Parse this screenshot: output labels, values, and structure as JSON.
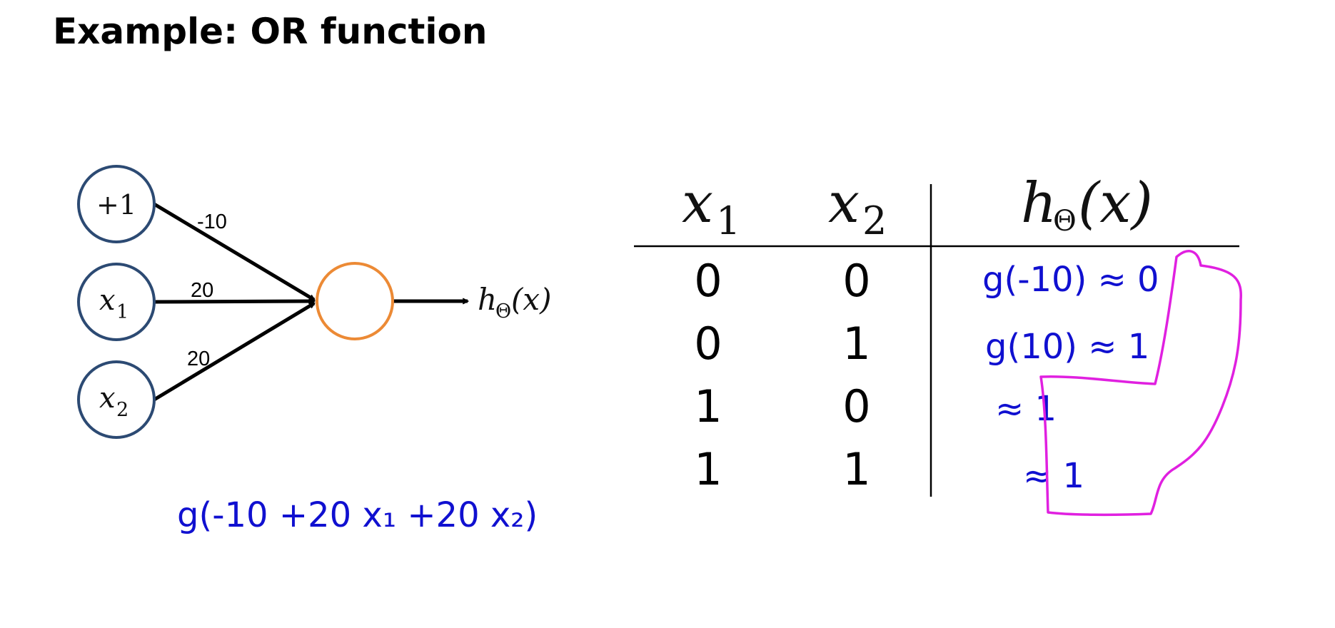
{
  "title": "Example: OR function",
  "colors": {
    "input_node_stroke": "#2c4a73",
    "output_node_stroke": "#ec8a35",
    "handwriting_blue": "#1010d0",
    "highlight_magenta": "#e020e0"
  },
  "network": {
    "inputs": [
      {
        "label_main": "+1",
        "weight": "-10"
      },
      {
        "label_main": "x",
        "label_sub": "1",
        "weight": "20"
      },
      {
        "label_main": "x",
        "label_sub": "2",
        "weight": "20"
      }
    ],
    "output_label": {
      "h": "h",
      "sub": "Θ",
      "args": "(x)"
    }
  },
  "table": {
    "headers": [
      {
        "main": "x",
        "sub": "1"
      },
      {
        "main": "x",
        "sub": "2"
      },
      {
        "main": "h",
        "sub": "Θ",
        "args": "(x)"
      }
    ],
    "rows": [
      {
        "x1": "0",
        "x2": "0"
      },
      {
        "x1": "0",
        "x2": "1"
      },
      {
        "x1": "1",
        "x2": "0"
      },
      {
        "x1": "1",
        "x2": "1"
      }
    ]
  },
  "annotations": {
    "formula": "g(-10 +20 x₁ +20 x₂)",
    "row_values": [
      "g(-10) ≈ 0",
      "g(10) ≈ 1",
      "≈ 1",
      "≈ 1"
    ]
  }
}
